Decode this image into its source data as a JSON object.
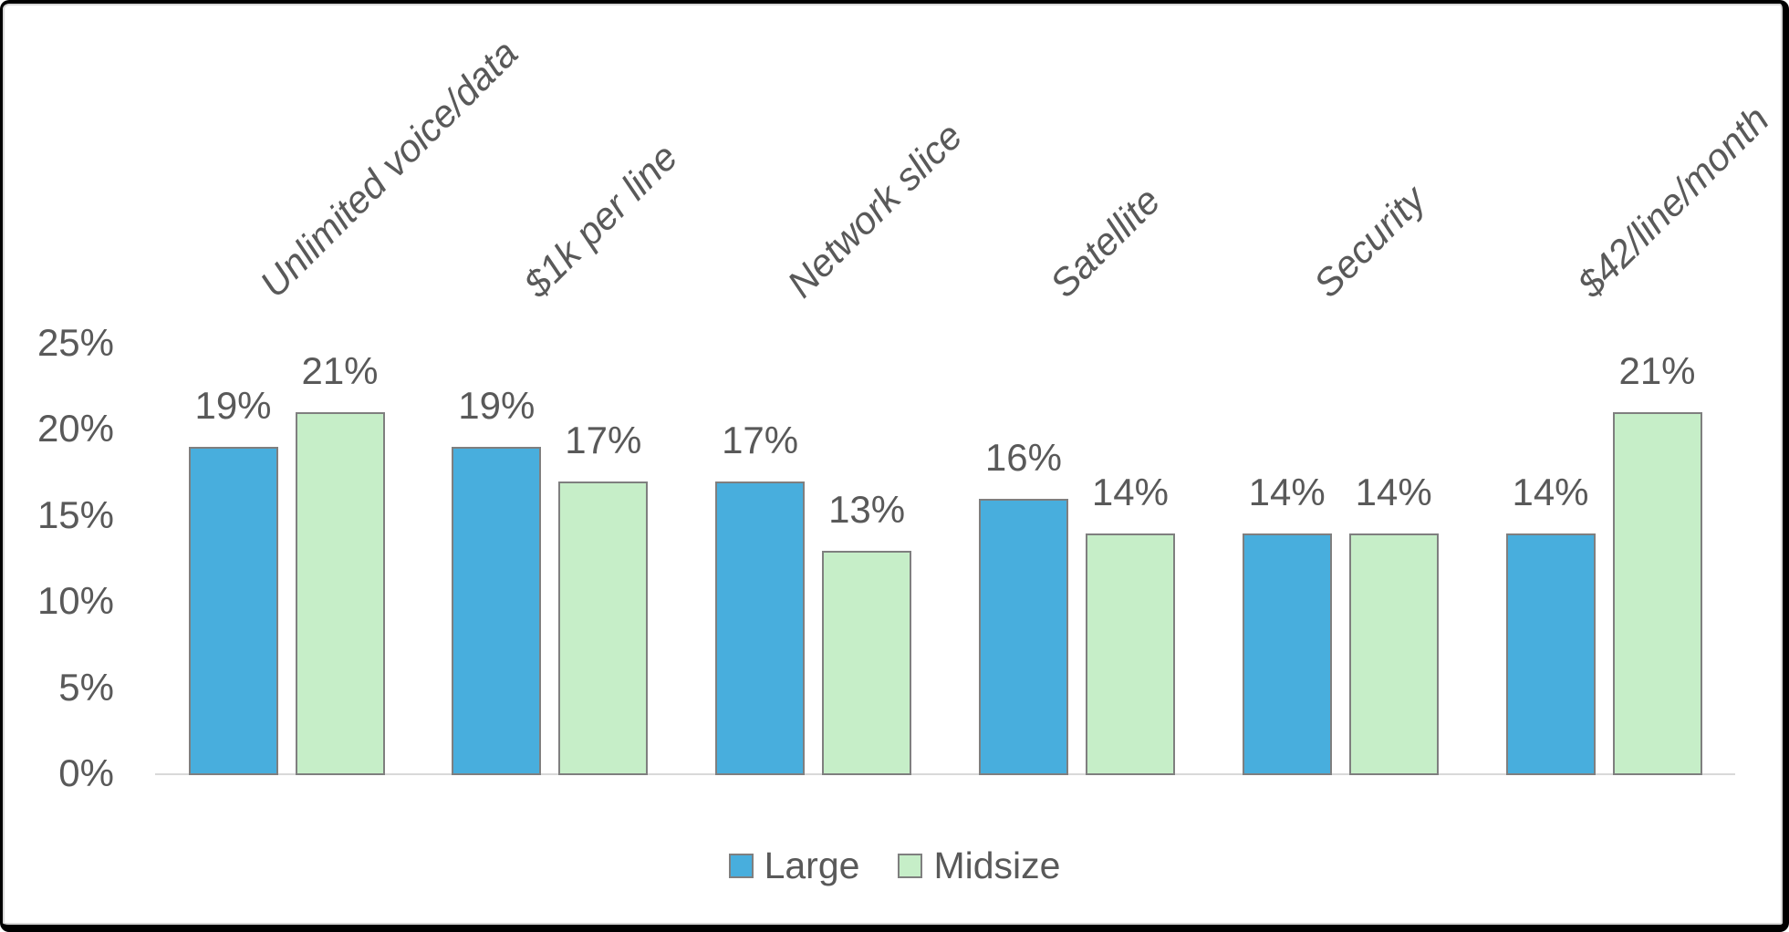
{
  "chart_data": {
    "type": "bar",
    "categories": [
      "Unlimited voice/data",
      "$1k per line",
      "Network slice",
      "Satellite",
      "Security",
      "$42/line/month"
    ],
    "series": [
      {
        "name": "Large",
        "color": "#48AEDD",
        "values": [
          19,
          19,
          17,
          16,
          14,
          14
        ],
        "labels": [
          "19%",
          "19%",
          "17%",
          "16%",
          "14%",
          "14%"
        ]
      },
      {
        "name": "Midsize",
        "color": "#C6EEC8",
        "values": [
          21,
          17,
          13,
          14,
          14,
          21
        ],
        "labels": [
          "21%",
          "17%",
          "13%",
          "14%",
          "14%",
          "21%"
        ]
      }
    ],
    "title": "",
    "xlabel": "",
    "ylabel": "",
    "ylim": [
      0,
      25
    ],
    "y_axis": {
      "tick_values": [
        0,
        5,
        10,
        15,
        20,
        25
      ],
      "tick_labels": [
        "0%",
        "5%",
        "10%",
        "15%",
        "20%",
        "25%"
      ]
    },
    "grid": false,
    "legend_position": "bottom",
    "colors": {
      "bar_border": "#7f7f7f",
      "text": "#595959",
      "axis_line": "#d9d9d9",
      "frame_border": "#000000"
    }
  }
}
